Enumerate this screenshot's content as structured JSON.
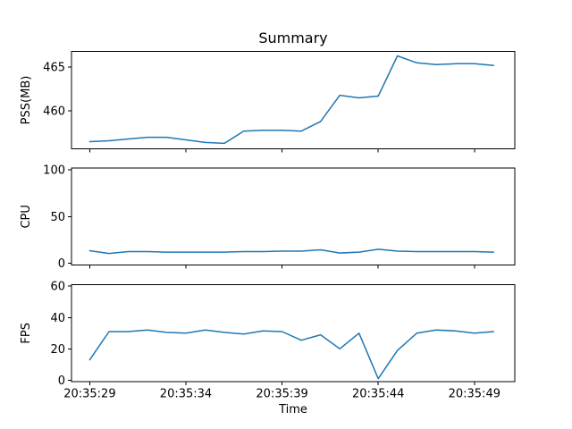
{
  "figure": {
    "title": "Summary",
    "background_color": "#ffffff",
    "line_color": "#1f77b4",
    "text_color": "#000000"
  },
  "chart_data": [
    {
      "type": "line",
      "name": "pss",
      "title": "Summary",
      "ylabel": "PSS(MB)",
      "x_unit": "seconds after 20:35:00",
      "x": [
        29,
        30,
        31,
        32,
        33,
        34,
        35,
        36,
        37,
        38,
        39,
        40,
        41,
        42,
        43,
        44,
        45,
        46,
        47,
        48,
        49,
        50
      ],
      "values": [
        456.5,
        456.6,
        456.8,
        457.0,
        457.0,
        456.7,
        456.4,
        456.3,
        457.7,
        457.8,
        457.8,
        457.7,
        458.8,
        461.8,
        461.5,
        461.7,
        466.3,
        465.5,
        465.3,
        465.4,
        465.4,
        465.2
      ],
      "xlim": [
        28.05,
        51.1
      ],
      "ylim": [
        455.7,
        466.8
      ],
      "yticks": [
        460,
        465
      ],
      "xticks": [
        29,
        34,
        39,
        44,
        49
      ],
      "xtick_labels": [
        "20:35:29",
        "20:35:34",
        "20:35:39",
        "20:35:44",
        "20:35:49"
      ],
      "grid": false,
      "legend": null
    },
    {
      "type": "line",
      "name": "cpu",
      "ylabel": "CPU",
      "x_unit": "seconds after 20:35:00",
      "x": [
        29,
        30,
        31,
        32,
        33,
        34,
        35,
        36,
        37,
        38,
        39,
        40,
        41,
        42,
        43,
        44,
        45,
        46,
        47,
        48,
        49,
        50
      ],
      "values": [
        13.5,
        10.5,
        12.5,
        12.5,
        12,
        12,
        12,
        12,
        12.5,
        12.5,
        13,
        13,
        14.5,
        11,
        12,
        15,
        13,
        12.5,
        12.5,
        12.5,
        12.5,
        12
      ],
      "xlim": [
        28.05,
        51.1
      ],
      "ylim": [
        -2,
        102
      ],
      "yticks": [
        0,
        50,
        100
      ],
      "xticks": [
        29,
        34,
        39,
        44,
        49
      ],
      "xtick_labels": [
        "20:35:29",
        "20:35:34",
        "20:35:39",
        "20:35:44",
        "20:35:49"
      ],
      "grid": false,
      "legend": null
    },
    {
      "type": "line",
      "name": "fps",
      "ylabel": "FPS",
      "xlabel": "Time",
      "x_unit": "seconds after 20:35:00",
      "x": [
        29,
        30,
        31,
        32,
        33,
        34,
        35,
        36,
        37,
        38,
        39,
        40,
        41,
        42,
        43,
        44,
        45,
        46,
        47,
        48,
        49,
        50
      ],
      "values": [
        13,
        31,
        31,
        32,
        30.5,
        30,
        32,
        30.5,
        29.5,
        31.5,
        31,
        25.5,
        29,
        20,
        30,
        1,
        19,
        30,
        32,
        31.5,
        30,
        31
      ],
      "xlim": [
        28.05,
        51.1
      ],
      "ylim": [
        -1,
        61
      ],
      "yticks": [
        0,
        20,
        40,
        60
      ],
      "xticks": [
        29,
        34,
        39,
        44,
        49
      ],
      "xtick_labels": [
        "20:35:29",
        "20:35:34",
        "20:35:39",
        "20:35:44",
        "20:35:49"
      ],
      "grid": false,
      "legend": null
    }
  ]
}
